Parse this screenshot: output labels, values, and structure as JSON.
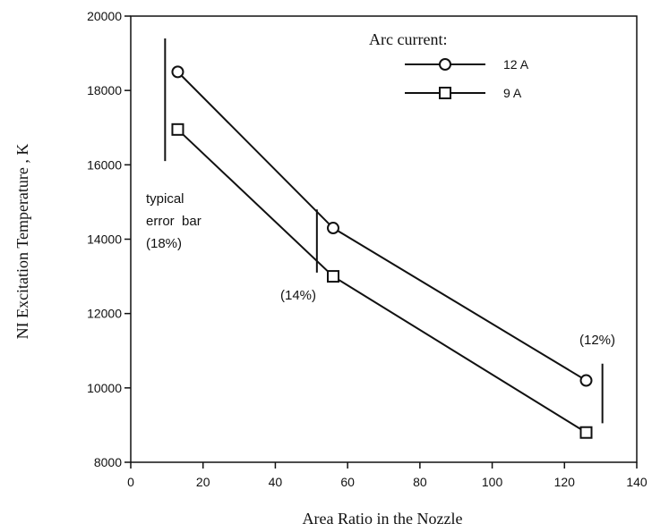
{
  "chart_data": {
    "type": "line",
    "title": "",
    "xlabel": "Area Ratio in the Nozzle",
    "ylabel": "NI Excitation Temperature , K",
    "xlim": [
      0,
      140
    ],
    "ylim": [
      8000,
      20000
    ],
    "xticks": [
      0,
      20,
      40,
      60,
      80,
      100,
      120,
      140
    ],
    "yticks": [
      8000,
      10000,
      12000,
      14000,
      16000,
      18000,
      20000
    ],
    "grid": false,
    "legend": {
      "title": "Arc current:",
      "placement": "top-right"
    },
    "series": [
      {
        "name": "12 A",
        "marker": "circle",
        "x": [
          13,
          56,
          126
        ],
        "y": [
          18500,
          14300,
          10200
        ]
      },
      {
        "name": "9 A",
        "marker": "square",
        "x": [
          13,
          56,
          126
        ],
        "y": [
          16950,
          13000,
          8800
        ]
      }
    ],
    "error_bars": [
      {
        "x": 9.5,
        "y_low": 16100,
        "y_high": 19400,
        "label": "(18%)"
      },
      {
        "x": 51.5,
        "y_low": 13100,
        "y_high": 14800,
        "label": "(14%)"
      },
      {
        "x": 130.5,
        "y_low": 9050,
        "y_high": 10650,
        "label": "(12%)"
      }
    ],
    "annotations": [
      "typical",
      "error  bar",
      "(18%)",
      "(14%)",
      "(12%)"
    ]
  }
}
